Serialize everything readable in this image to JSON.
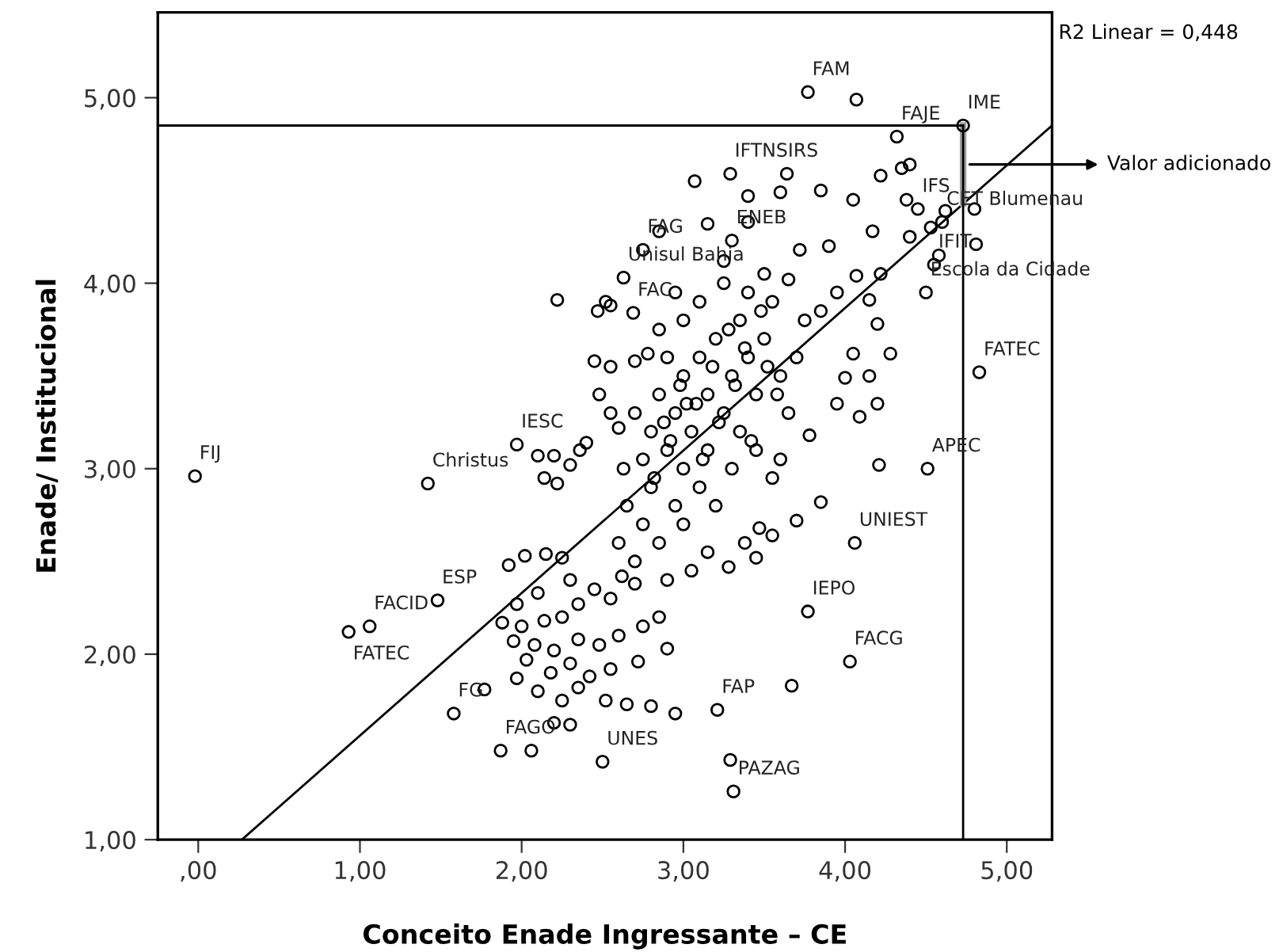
{
  "chart_data": {
    "type": "scatter",
    "xlabel": "Conceito Enade Ingressante – CE",
    "ylabel": "Enade/ Institucional",
    "xlim": [
      -0.25,
      5.28
    ],
    "ylim": [
      1.0,
      5.46
    ],
    "xticks": [
      {
        "value": 0,
        "label": ",00"
      },
      {
        "value": 1,
        "label": "1,00"
      },
      {
        "value": 2,
        "label": "2,00"
      },
      {
        "value": 3,
        "label": "3,00"
      },
      {
        "value": 4,
        "label": "4,00"
      },
      {
        "value": 5,
        "label": "5,00"
      }
    ],
    "yticks": [
      {
        "value": 1,
        "label": "1,00"
      },
      {
        "value": 2,
        "label": "2,00"
      },
      {
        "value": 3,
        "label": "3,00"
      },
      {
        "value": 4,
        "label": "4,00"
      },
      {
        "value": 5,
        "label": "5,00"
      }
    ],
    "grid": false,
    "marker": "circle",
    "series": [
      {
        "color": "#000000",
        "x": [
          3.77,
          4.07,
          4.32,
          4.73,
          3.29,
          3.64,
          4.83,
          4.51,
          4.06,
          3.77,
          4.03,
          3.67,
          3.21,
          3.29,
          3.31,
          2.5,
          1.87,
          2.06,
          1.58,
          1.77,
          0.93,
          1.06,
          1.48,
          -0.02,
          1.42,
          1.97,
          2.63,
          2.69,
          2.75,
          2.85,
          3.3,
          2.22,
          4.35,
          4.45,
          4.6,
          4.55,
          3.07,
          3.4,
          3.6,
          3.85,
          4.05,
          4.22,
          4.4,
          4.38,
          4.17,
          4.4,
          4.53,
          4.58,
          4.62,
          4.8,
          4.81,
          4.22,
          4.07,
          3.95,
          4.15,
          4.2,
          4.5,
          3.9,
          3.72,
          3.4,
          3.15,
          3.25,
          3.5,
          3.65,
          3.85,
          4.05,
          4.28,
          4.15,
          4.0,
          3.95,
          4.2,
          4.09,
          3.78,
          3.6,
          4.21,
          3.55,
          3.85,
          3.7,
          3.47,
          3.38,
          3.28,
          3.55,
          3.45,
          2.52,
          2.47,
          2.55,
          2.45,
          2.55,
          2.7,
          2.78,
          2.4,
          2.36,
          2.2,
          2.1,
          2.3,
          2.22,
          2.14,
          2.48,
          2.55,
          2.6,
          2.63,
          1.92,
          2.02,
          2.15,
          2.25,
          2.3,
          2.1,
          1.97,
          1.88,
          2.0,
          2.14,
          2.25,
          2.35,
          2.45,
          2.55,
          2.62,
          2.7,
          1.95,
          2.08,
          2.2,
          2.35,
          2.48,
          2.6,
          2.75,
          2.85,
          2.03,
          2.18,
          2.3,
          2.42,
          2.55,
          2.72,
          2.9,
          1.97,
          2.1,
          2.25,
          2.35,
          2.52,
          2.65,
          2.8,
          2.95,
          2.2,
          2.3,
          2.7,
          2.8,
          2.85,
          2.9,
          2.95,
          3.0,
          3.05,
          3.1,
          3.15,
          3.2,
          3.25,
          3.3,
          3.35,
          3.4,
          3.45,
          3.5,
          3.55,
          3.0,
          3.1,
          2.95,
          2.8,
          2.75,
          2.85,
          3.0,
          3.2,
          3.3,
          3.35,
          3.45,
          3.15,
          2.9,
          3.0,
          3.1,
          3.25,
          3.4,
          2.95,
          2.85,
          3.6,
          3.65,
          3.7,
          3.75,
          2.65,
          2.6,
          2.7,
          2.9,
          3.05,
          3.15,
          2.75,
          2.88,
          2.98,
          3.08,
          3.18,
          3.28,
          3.38,
          3.48,
          3.58,
          2.82,
          2.92,
          3.02,
          3.12,
          3.22,
          3.32,
          3.42,
          3.52
        ],
        "values": [
          5.03,
          4.99,
          4.79,
          4.85,
          4.59,
          4.59,
          3.52,
          3.0,
          2.6,
          2.23,
          1.96,
          1.83,
          1.7,
          1.43,
          1.26,
          1.42,
          1.48,
          1.48,
          1.68,
          1.81,
          2.12,
          2.15,
          2.29,
          2.96,
          2.92,
          3.13,
          4.03,
          3.84,
          4.18,
          4.28,
          4.23,
          3.91,
          4.62,
          4.4,
          4.33,
          4.1,
          4.55,
          4.47,
          4.49,
          4.5,
          4.45,
          4.58,
          4.64,
          4.45,
          4.28,
          4.25,
          4.3,
          4.15,
          4.39,
          4.4,
          4.21,
          4.05,
          4.04,
          3.95,
          3.91,
          3.78,
          3.95,
          4.2,
          4.18,
          4.33,
          4.32,
          4.12,
          4.05,
          4.02,
          3.85,
          3.62,
          3.62,
          3.5,
          3.49,
          3.35,
          3.35,
          3.28,
          3.18,
          3.05,
          3.02,
          2.95,
          2.82,
          2.72,
          2.68,
          2.6,
          2.47,
          2.64,
          2.52,
          3.9,
          3.85,
          3.88,
          3.58,
          3.55,
          3.58,
          3.62,
          3.14,
          3.1,
          3.07,
          3.07,
          3.02,
          2.92,
          2.95,
          3.4,
          3.3,
          3.22,
          3.0,
          2.48,
          2.53,
          2.54,
          2.52,
          2.4,
          2.33,
          2.27,
          2.17,
          2.15,
          2.18,
          2.2,
          2.27,
          2.35,
          2.3,
          2.42,
          2.38,
          2.07,
          2.05,
          2.02,
          2.08,
          2.05,
          2.1,
          2.15,
          2.2,
          1.97,
          1.9,
          1.95,
          1.88,
          1.92,
          1.96,
          2.03,
          1.87,
          1.8,
          1.75,
          1.82,
          1.75,
          1.73,
          1.72,
          1.68,
          1.63,
          1.62,
          3.3,
          3.2,
          3.4,
          3.1,
          3.3,
          3.5,
          3.2,
          3.6,
          3.4,
          3.7,
          3.3,
          3.5,
          3.8,
          3.6,
          3.4,
          3.7,
          3.9,
          3.0,
          2.9,
          2.8,
          2.9,
          2.7,
          2.6,
          2.7,
          2.8,
          3.0,
          3.2,
          3.1,
          3.1,
          3.6,
          3.8,
          3.9,
          4.0,
          3.95,
          3.95,
          3.75,
          3.5,
          3.3,
          3.6,
          3.8,
          2.8,
          2.6,
          2.5,
          2.4,
          2.45,
          2.55,
          3.05,
          3.25,
          3.45,
          3.35,
          3.55,
          3.75,
          3.65,
          3.85,
          3.4,
          2.95,
          3.15,
          3.35,
          3.05,
          3.25,
          3.45,
          3.15,
          3.55
        ]
      },
      {
        "type": "line",
        "marker": "none",
        "color": "#000000",
        "x": [
          0.27,
          5.28
        ],
        "values": [
          1.0,
          4.85
        ]
      },
      {
        "type": "line",
        "marker": "none",
        "color": "#a0a0a0",
        "x": [
          4.73,
          4.73
        ],
        "values": [
          4.85,
          4.43
        ]
      }
    ],
    "ref_lines": [
      {
        "axis": "y",
        "value": 4.85,
        "color": "#000000"
      },
      {
        "axis": "x",
        "value": 4.73,
        "color": "#000000"
      }
    ],
    "annotations": [
      {
        "text": "FAM",
        "x": 3.77,
        "y": 5.03
      },
      {
        "text": "FAJE",
        "x": 4.32,
        "y": 4.79
      },
      {
        "text": "IME",
        "x": 4.73,
        "y": 4.85
      },
      {
        "text": "IFTNSIRS",
        "x": 3.29,
        "y": 4.59
      },
      {
        "text": "IFS",
        "x": 4.45,
        "y": 4.4
      },
      {
        "text": "CET Blumenau",
        "x": 4.6,
        "y": 4.33
      },
      {
        "text": "IFIT",
        "x": 4.55,
        "y": 4.1
      },
      {
        "text": "Escola da Cidade",
        "x": 4.5,
        "y": 3.95
      },
      {
        "text": "FATEC",
        "x": 4.83,
        "y": 3.52
      },
      {
        "text": "APEC",
        "x": 4.51,
        "y": 3.0
      },
      {
        "text": "UNIEST",
        "x": 4.06,
        "y": 2.6
      },
      {
        "text": "IEPO",
        "x": 3.77,
        "y": 2.23
      },
      {
        "text": "FACG",
        "x": 4.03,
        "y": 1.96
      },
      {
        "text": "FAP",
        "x": 3.21,
        "y": 1.7
      },
      {
        "text": "PAZAG",
        "x": 3.31,
        "y": 1.26
      },
      {
        "text": "UNES",
        "x": 2.5,
        "y": 1.42
      },
      {
        "text": "FAGO",
        "x": 1.87,
        "y": 1.48
      },
      {
        "text": "FG",
        "x": 1.58,
        "y": 1.68
      },
      {
        "text": "FACID",
        "x": 1.06,
        "y": 2.15
      },
      {
        "text": "FATEC",
        "x": 0.93,
        "y": 2.12
      },
      {
        "text": "ESP",
        "x": 1.48,
        "y": 2.29
      },
      {
        "text": "FIJ",
        "x": -0.02,
        "y": 2.96
      },
      {
        "text": "Christus",
        "x": 1.42,
        "y": 2.92
      },
      {
        "text": "IESC",
        "x": 1.97,
        "y": 3.13
      },
      {
        "text": "Unisul Bahia",
        "x": 2.63,
        "y": 4.03
      },
      {
        "text": "FAC",
        "x": 2.69,
        "y": 3.84
      },
      {
        "text": "FAG",
        "x": 2.75,
        "y": 4.18
      },
      {
        "text": "ENEB",
        "x": 3.3,
        "y": 4.23
      },
      {
        "text": "Valor adicionado",
        "x": 4.73,
        "y": 4.64
      },
      "R2 Linear = 0,448"
    ]
  }
}
